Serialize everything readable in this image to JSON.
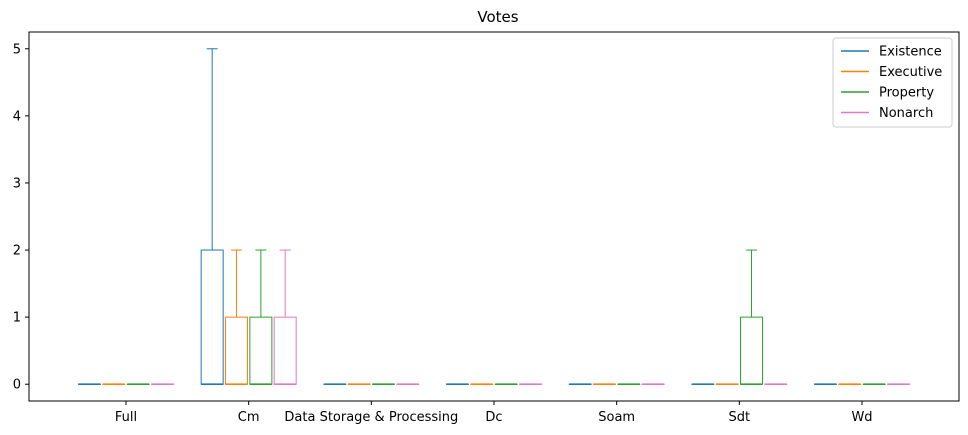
{
  "chart_data": {
    "type": "boxplot",
    "title": "Votes",
    "xlabel": "",
    "ylabel": "",
    "categories": [
      "Full",
      "Cm",
      "Data Storage & Processing",
      "Dc",
      "Soam",
      "Sdt",
      "Wd"
    ],
    "yticks": [
      0,
      1,
      2,
      3,
      4,
      5
    ],
    "ylim": [
      -0.25,
      5.25
    ],
    "grid": false,
    "legend_position": "top-right",
    "series": [
      {
        "name": "Existence",
        "color": "#1f77b4",
        "boxes": [
          {
            "whisker_low": 0,
            "q1": 0,
            "median": 0,
            "q3": 0,
            "whisker_high": 0
          },
          {
            "whisker_low": 0,
            "q1": 0,
            "median": 0,
            "q3": 2,
            "whisker_high": 5
          },
          {
            "whisker_low": 0,
            "q1": 0,
            "median": 0,
            "q3": 0,
            "whisker_high": 0
          },
          {
            "whisker_low": 0,
            "q1": 0,
            "median": 0,
            "q3": 0,
            "whisker_high": 0
          },
          {
            "whisker_low": 0,
            "q1": 0,
            "median": 0,
            "q3": 0,
            "whisker_high": 0
          },
          {
            "whisker_low": 0,
            "q1": 0,
            "median": 0,
            "q3": 0,
            "whisker_high": 0
          },
          {
            "whisker_low": 0,
            "q1": 0,
            "median": 0,
            "q3": 0,
            "whisker_high": 0
          }
        ]
      },
      {
        "name": "Executive",
        "color": "#ff7f0e",
        "boxes": [
          {
            "whisker_low": 0,
            "q1": 0,
            "median": 0,
            "q3": 0,
            "whisker_high": 0
          },
          {
            "whisker_low": 0,
            "q1": 0,
            "median": 0,
            "q3": 1,
            "whisker_high": 2
          },
          {
            "whisker_low": 0,
            "q1": 0,
            "median": 0,
            "q3": 0,
            "whisker_high": 0
          },
          {
            "whisker_low": 0,
            "q1": 0,
            "median": 0,
            "q3": 0,
            "whisker_high": 0
          },
          {
            "whisker_low": 0,
            "q1": 0,
            "median": 0,
            "q3": 0,
            "whisker_high": 0
          },
          {
            "whisker_low": 0,
            "q1": 0,
            "median": 0,
            "q3": 0,
            "whisker_high": 0
          },
          {
            "whisker_low": 0,
            "q1": 0,
            "median": 0,
            "q3": 0,
            "whisker_high": 0
          }
        ]
      },
      {
        "name": "Property",
        "color": "#2ca02c",
        "boxes": [
          {
            "whisker_low": 0,
            "q1": 0,
            "median": 0,
            "q3": 0,
            "whisker_high": 0
          },
          {
            "whisker_low": 0,
            "q1": 0,
            "median": 0,
            "q3": 1,
            "whisker_high": 2
          },
          {
            "whisker_low": 0,
            "q1": 0,
            "median": 0,
            "q3": 0,
            "whisker_high": 0
          },
          {
            "whisker_low": 0,
            "q1": 0,
            "median": 0,
            "q3": 0,
            "whisker_high": 0
          },
          {
            "whisker_low": 0,
            "q1": 0,
            "median": 0,
            "q3": 0,
            "whisker_high": 0
          },
          {
            "whisker_low": 0,
            "q1": 0,
            "median": 0,
            "q3": 1,
            "whisker_high": 2
          },
          {
            "whisker_low": 0,
            "q1": 0,
            "median": 0,
            "q3": 0,
            "whisker_high": 0
          }
        ]
      },
      {
        "name": "Nonarch",
        "color": "#e377c2",
        "boxes": [
          {
            "whisker_low": 0,
            "q1": 0,
            "median": 0,
            "q3": 0,
            "whisker_high": 0
          },
          {
            "whisker_low": 0,
            "q1": 0,
            "median": 0,
            "q3": 1,
            "whisker_high": 2
          },
          {
            "whisker_low": 0,
            "q1": 0,
            "median": 0,
            "q3": 0,
            "whisker_high": 0
          },
          {
            "whisker_low": 0,
            "q1": 0,
            "median": 0,
            "q3": 0,
            "whisker_high": 0
          },
          {
            "whisker_low": 0,
            "q1": 0,
            "median": 0,
            "q3": 0,
            "whisker_high": 0
          },
          {
            "whisker_low": 0,
            "q1": 0,
            "median": 0,
            "q3": 0,
            "whisker_high": 0
          },
          {
            "whisker_low": 0,
            "q1": 0,
            "median": 0,
            "q3": 0,
            "whisker_high": 0
          }
        ]
      }
    ]
  }
}
